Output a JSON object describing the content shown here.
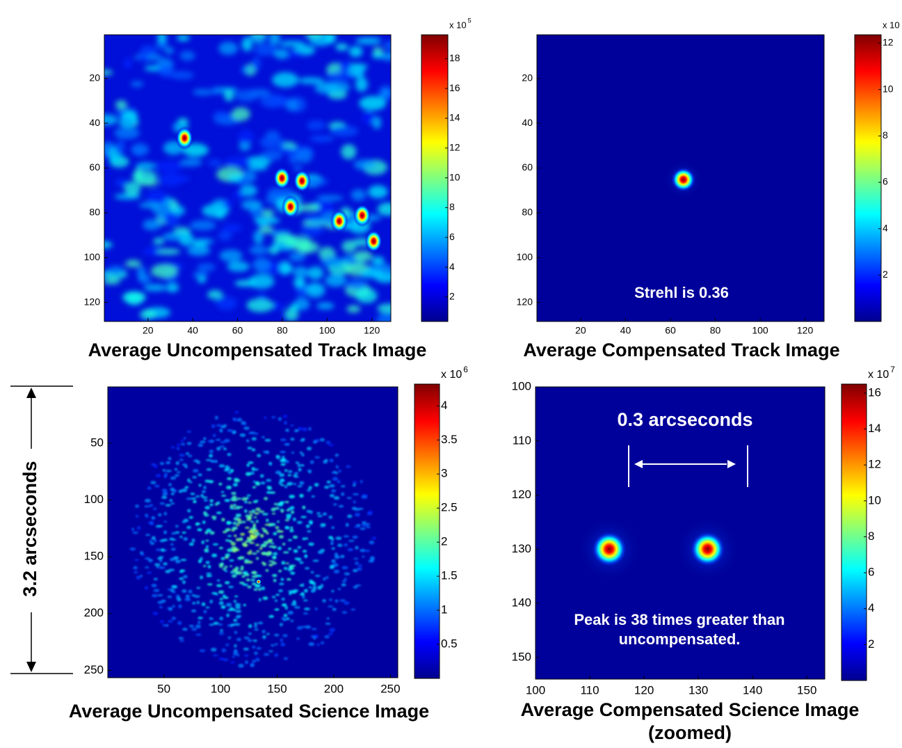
{
  "chart_data": [
    {
      "type": "heatmap",
      "title": [
        "Average Uncompensated Track Image"
      ],
      "xlim": [
        0.5,
        128.5
      ],
      "ylim": [
        0.5,
        128.5
      ],
      "y_reversed": true,
      "xticks": [
        20,
        40,
        60,
        80,
        100,
        120
      ],
      "yticks": [
        20,
        40,
        60,
        80,
        100,
        120
      ],
      "colormap": "jet",
      "colorbar": {
        "lim": [
          0.36,
          19.6
        ],
        "ticks": [
          2,
          4,
          6,
          8,
          10,
          12,
          14,
          16,
          18
        ],
        "multiplier": "x 10",
        "exponent": "5"
      }
    },
    {
      "type": "heatmap",
      "title": [
        "Average Compensated Track Image"
      ],
      "xlim": [
        0.5,
        128.5
      ],
      "ylim": [
        0.5,
        128.5
      ],
      "y_reversed": true,
      "xticks": [
        20,
        40,
        60,
        80,
        100,
        120
      ],
      "yticks": [
        20,
        40,
        60,
        80,
        100,
        120
      ],
      "colormap": "jet",
      "colorbar": {
        "lim": [
          0,
          12.36
        ],
        "ticks": [
          2,
          4,
          6,
          8,
          10,
          12
        ],
        "multiplier": "x 10"
      },
      "annotations": [
        "Strehl is 0.36"
      ]
    },
    {
      "type": "heatmap",
      "title": [
        "Average Uncompensated Science Image"
      ],
      "xlim": [
        0.5,
        256.5
      ],
      "ylim": [
        0.5,
        256.5
      ],
      "y_reversed": true,
      "xticks": [
        50,
        100,
        150,
        200,
        250
      ],
      "yticks": [
        50,
        100,
        150,
        200,
        250
      ],
      "colormap": "jet",
      "colorbar": {
        "lim": [
          0,
          4.32
        ],
        "ticks": [
          0.5,
          1,
          1.5,
          2,
          2.5,
          3,
          3.5,
          4
        ],
        "multiplier": "x 10",
        "exponent": "6"
      },
      "annotations": [
        "3.2 arcseconds"
      ]
    },
    {
      "type": "heatmap",
      "title": [
        "Average Compensated Science Image",
        "(zoomed)"
      ],
      "xlim": [
        100,
        153.3
      ],
      "ylim": [
        100,
        154
      ],
      "y_reversed": true,
      "xticks": [
        100,
        110,
        120,
        130,
        140,
        150
      ],
      "yticks": [
        100,
        110,
        120,
        130,
        140,
        150
      ],
      "colormap": "jet",
      "colorbar": {
        "lim": [
          0,
          16.5
        ],
        "ticks": [
          2,
          4,
          6,
          8,
          10,
          12,
          14,
          16
        ],
        "multiplier": "x 10",
        "exponent": "7"
      },
      "annotations": [
        "0.3 arcseconds",
        "Peak is 38 times greater than",
        "uncompensated."
      ]
    }
  ]
}
